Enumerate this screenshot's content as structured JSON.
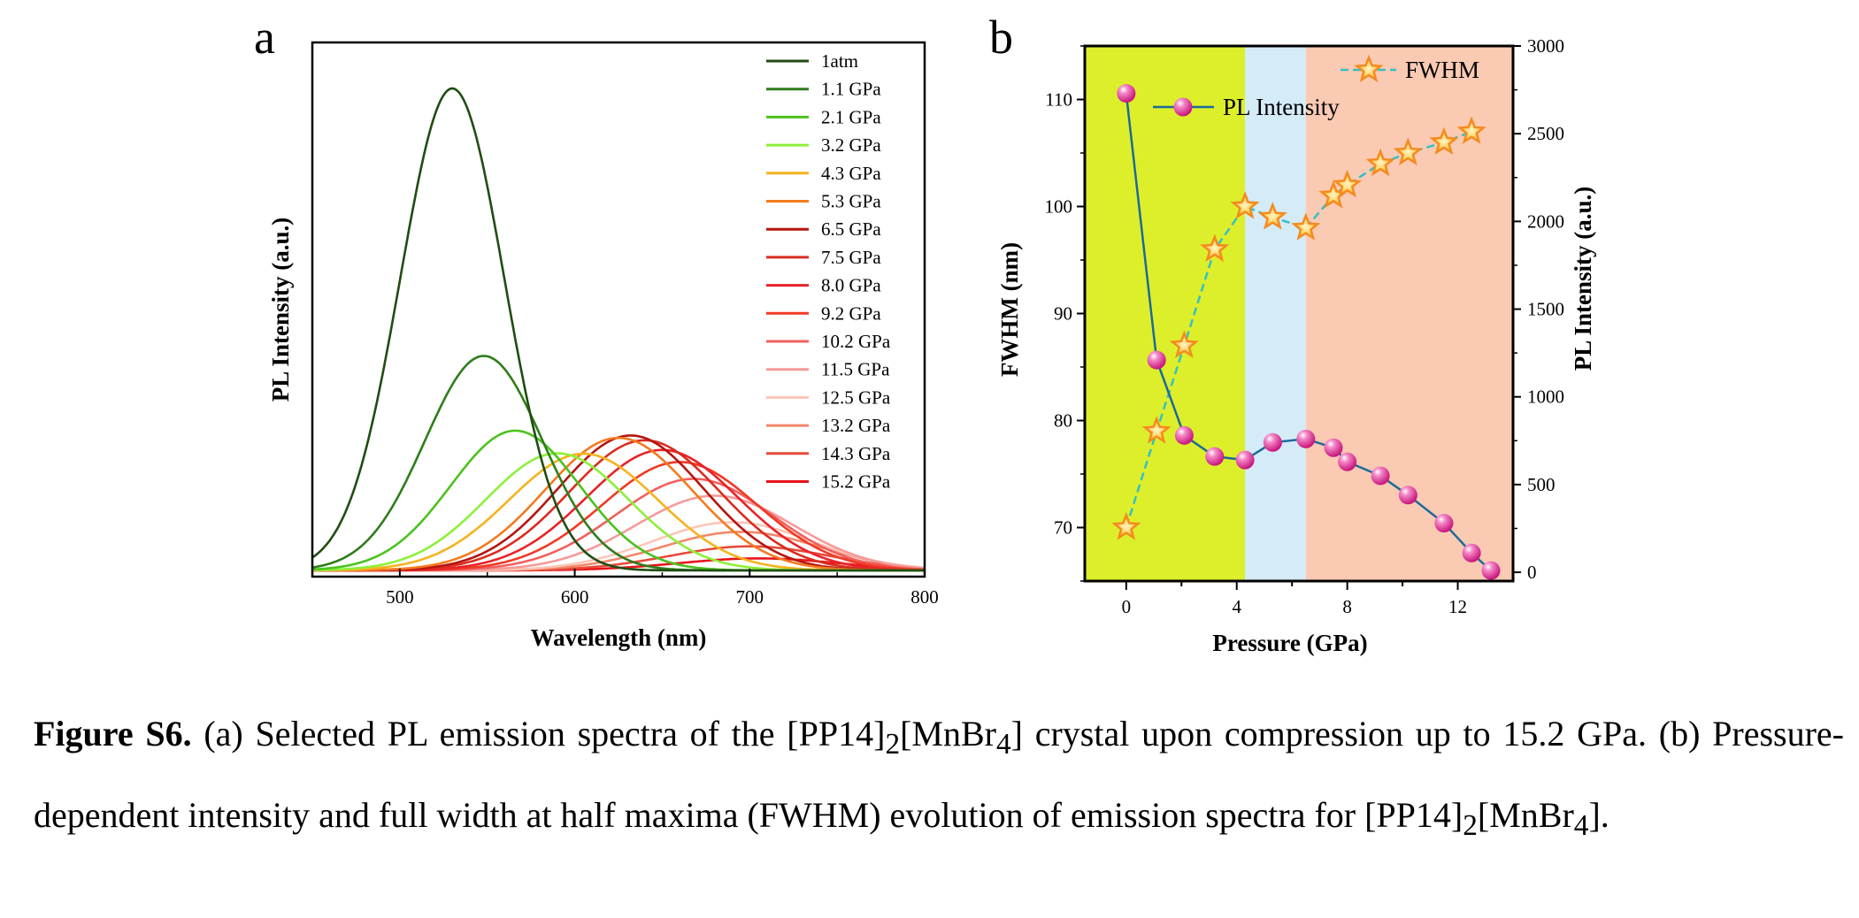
{
  "panel_a_letter": "a",
  "panel_b_letter": "b",
  "caption": {
    "label": "Figure S6.",
    "part1": " (a) Selected PL emission spectra of the [PP14]",
    "sub1": "2",
    "part2": "[MnBr",
    "sub2": "4",
    "part3": "] crystal upon compression up to 15.2 GPa. (b) Pressure-dependent intensity and full width at half maxima (FWHM) evolution of emission spectra for [PP14]",
    "sub3": "2",
    "part4": "[MnBr",
    "sub4": "4",
    "part5": "]."
  },
  "chart_data": [
    {
      "type": "line",
      "xlabel": "Wavelength (nm)",
      "ylabel": "PL Intensity (a.u.)",
      "xlim": [
        450,
        800
      ],
      "xticks": [
        500,
        600,
        700,
        800
      ],
      "yticks_shown": false,
      "legend_position": "top-right",
      "series": [
        {
          "name": "1atm",
          "color": "#1f4d12",
          "peak_nm": 530,
          "peak_rel": 1.0,
          "fwhm_nm": 70
        },
        {
          "name": "1.1 GPa",
          "color": "#2e7d1a",
          "peak_nm": 548,
          "peak_rel": 0.445,
          "fwhm_nm": 79
        },
        {
          "name": "2.1 GPa",
          "color": "#4cc21e",
          "peak_nm": 566,
          "peak_rel": 0.29,
          "fwhm_nm": 87
        },
        {
          "name": "3.2 GPa",
          "color": "#8ef03a",
          "peak_nm": 590,
          "peak_rel": 0.243,
          "fwhm_nm": 96
        },
        {
          "name": "4.3 GPa",
          "color": "#f5b31e",
          "peak_nm": 605,
          "peak_rel": 0.242,
          "fwhm_nm": 100
        },
        {
          "name": "5.3 GPa",
          "color": "#f47a1e",
          "peak_nm": 625,
          "peak_rel": 0.275,
          "fwhm_nm": 99
        },
        {
          "name": "6.5 GPa",
          "color": "#b5160f",
          "peak_nm": 632,
          "peak_rel": 0.28,
          "fwhm_nm": 98
        },
        {
          "name": "7.5 GPa",
          "color": "#d92d20",
          "peak_nm": 640,
          "peak_rel": 0.27,
          "fwhm_nm": 101
        },
        {
          "name": "8.0 GPa",
          "color": "#e8232a",
          "peak_nm": 650,
          "peak_rel": 0.25,
          "fwhm_nm": 102
        },
        {
          "name": "9.2 GPa",
          "color": "#f03a24",
          "peak_nm": 660,
          "peak_rel": 0.225,
          "fwhm_nm": 104
        },
        {
          "name": "10.2 GPa",
          "color": "#f06060",
          "peak_nm": 668,
          "peak_rel": 0.19,
          "fwhm_nm": 105
        },
        {
          "name": "11.5 GPa",
          "color": "#f59a9a",
          "peak_nm": 680,
          "peak_rel": 0.155,
          "fwhm_nm": 106
        },
        {
          "name": "12.5 GPa",
          "color": "#fbc6b8",
          "peak_nm": 690,
          "peak_rel": 0.1,
          "fwhm_nm": 107
        },
        {
          "name": "13.2 GPa",
          "color": "#f0886a",
          "peak_nm": 695,
          "peak_rel": 0.08,
          "fwhm_nm": 107
        },
        {
          "name": "14.3 GPa",
          "color": "#e64a3a",
          "peak_nm": 700,
          "peak_rel": 0.05,
          "fwhm_nm": 107
        },
        {
          "name": "15.2 GPa",
          "color": "#e8141a",
          "peak_nm": 705,
          "peak_rel": 0.025,
          "fwhm_nm": 107
        }
      ]
    },
    {
      "type": "line",
      "xlabel": "Pressure (GPa)",
      "ylabel_left": "FWHM (nm)",
      "ylabel_right": "PL Intensity (a.u.)",
      "xlim": [
        -1.5,
        14
      ],
      "ylim_left": [
        65,
        115
      ],
      "ylim_right": [
        -50,
        3000
      ],
      "xticks": [
        0,
        4,
        8,
        12
      ],
      "yticks_left": [
        70,
        80,
        90,
        100,
        110
      ],
      "yticks_right": [
        0,
        500,
        1000,
        1500,
        2000,
        2500,
        3000
      ],
      "background_regions": [
        {
          "from": -1.5,
          "to": 4.3,
          "color": "#dcef2a"
        },
        {
          "from": 4.3,
          "to": 6.5,
          "color": "#d4ebf8"
        },
        {
          "from": 6.5,
          "to": 14,
          "color": "#fbcab3"
        }
      ],
      "series": [
        {
          "name": "FWHM",
          "axis": "left",
          "color": "#36bfc4",
          "marker": "star",
          "marker_color": "#f58a1f",
          "line_style": "dashed",
          "x": [
            0,
            1.1,
            2.1,
            3.2,
            4.3,
            5.3,
            6.5,
            7.5,
            8.0,
            9.2,
            10.2,
            11.5,
            12.5
          ],
          "y": [
            70,
            79,
            87,
            96,
            100,
            99,
            98,
            101,
            102,
            104,
            105,
            106,
            107
          ]
        },
        {
          "name": "PL Intensity",
          "axis": "right",
          "color": "#1d6a99",
          "marker": "sphere",
          "marker_color": "#e83ca0",
          "line_style": "solid",
          "x": [
            0,
            1.1,
            2.1,
            3.2,
            4.3,
            5.3,
            6.5,
            7.5,
            8.0,
            9.2,
            10.2,
            11.5,
            12.5,
            13.2
          ],
          "y": [
            2730,
            1210,
            780,
            660,
            640,
            740,
            760,
            710,
            630,
            550,
            440,
            280,
            110,
            10
          ]
        }
      ],
      "legend_position": "top"
    }
  ]
}
